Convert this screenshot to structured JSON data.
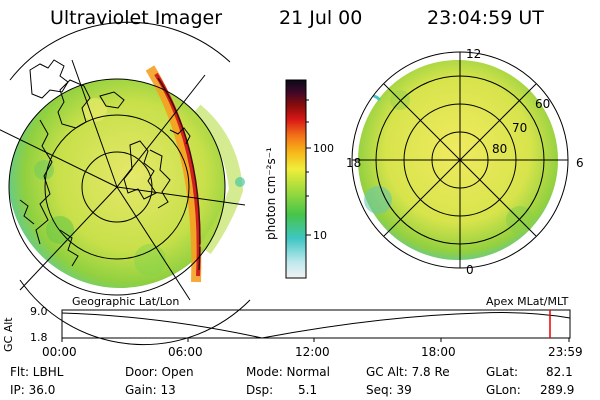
{
  "header": {
    "title": "Ultraviolet Imager",
    "date": "21 Jul 00",
    "time": "23:04:59 UT"
  },
  "left_panel": {
    "caption": "Geographic Lat/Lon"
  },
  "right_panel": {
    "caption": "Apex MLat/MLT",
    "mlt_labels": {
      "top": "12",
      "bottom": "0",
      "left": "18",
      "right": "6"
    },
    "lat_labels": [
      "60",
      "70",
      "80"
    ]
  },
  "colorbar": {
    "unit_label": "photon cm⁻²s⁻¹",
    "ticks": [
      "100",
      "10"
    ],
    "scale": "log"
  },
  "orbit_plot": {
    "ylabel": "GC Alt",
    "y_ticks": [
      "9.0",
      "1.8"
    ],
    "x_ticks": [
      "00:00",
      "06:00",
      "12:00",
      "18:00",
      "23:59"
    ],
    "marker_color": "#ee0000"
  },
  "info": {
    "flt": "Flt: LBHL",
    "ip": "IP: 36.0",
    "door": "Door: Open",
    "gain": "Gain: 13",
    "mode_label": "Mode: Normal",
    "dsp_label": "Dsp:",
    "dsp_value": "5.1",
    "gcalt": "GC Alt: 7.8 Re",
    "seq": "Seq: 39",
    "glat_label": "GLat:",
    "glat_value": "82.1",
    "glon_label": "GLon:",
    "glon_value": "289.9"
  }
}
